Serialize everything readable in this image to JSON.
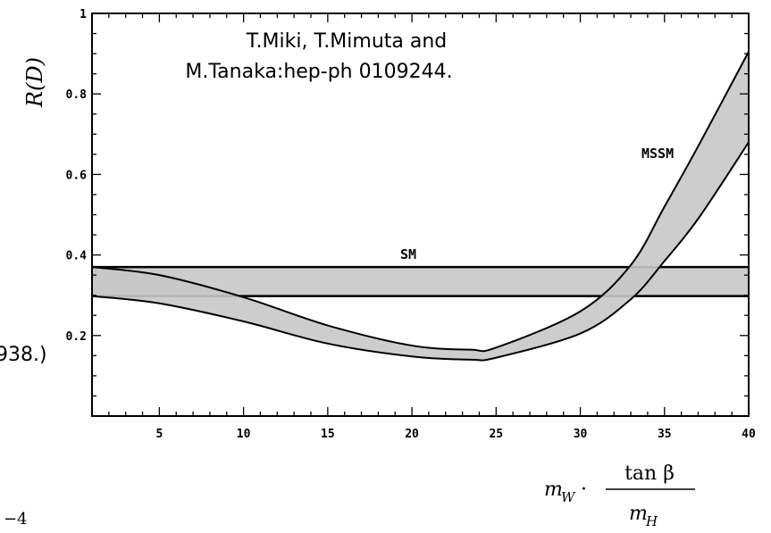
{
  "chart_data": {
    "type": "area",
    "xlabel_parts": {
      "m": "m",
      "W": "W",
      "dot": "·",
      "numerator": "tan β",
      "den_m": "m",
      "den_H": "H"
    },
    "ylabel": "R(D)",
    "xlim": [
      1,
      40
    ],
    "ylim": [
      0,
      1
    ],
    "x_ticks": [
      5,
      10,
      15,
      20,
      25,
      30,
      35,
      40
    ],
    "y_ticks": [
      {
        "value": 0.2,
        "label": "0.2"
      },
      {
        "value": 0.4,
        "label": "0.4"
      },
      {
        "value": 0.6,
        "label": "0.6"
      },
      {
        "value": 0.8,
        "label": "0.8"
      },
      {
        "value": 1.0,
        "label": "1"
      }
    ],
    "series": [
      {
        "name": "SM",
        "x": [
          1,
          40
        ],
        "upper": [
          0.37,
          0.37
        ],
        "lower": [
          0.298,
          0.298
        ],
        "fill": "#c8c8c8"
      },
      {
        "name": "MSSM",
        "x": [
          1,
          5,
          10,
          15,
          20,
          23.5,
          25,
          30,
          33,
          35,
          37,
          40
        ],
        "upper": [
          0.37,
          0.35,
          0.295,
          0.225,
          0.175,
          0.165,
          0.17,
          0.26,
          0.375,
          0.52,
          0.67,
          0.905
        ],
        "lower": [
          0.298,
          0.28,
          0.235,
          0.18,
          0.148,
          0.14,
          0.145,
          0.205,
          0.29,
          0.385,
          0.49,
          0.68
        ],
        "fill": "#c8c8c8"
      }
    ],
    "annotations": {
      "citation_line1": "T.Miki, T.Mimuta and",
      "citation_line2": "M.Tanaka:hep-ph 0109244.",
      "clipped_text": "938.)",
      "clipped_exponent": "−4"
    },
    "grid": false
  }
}
